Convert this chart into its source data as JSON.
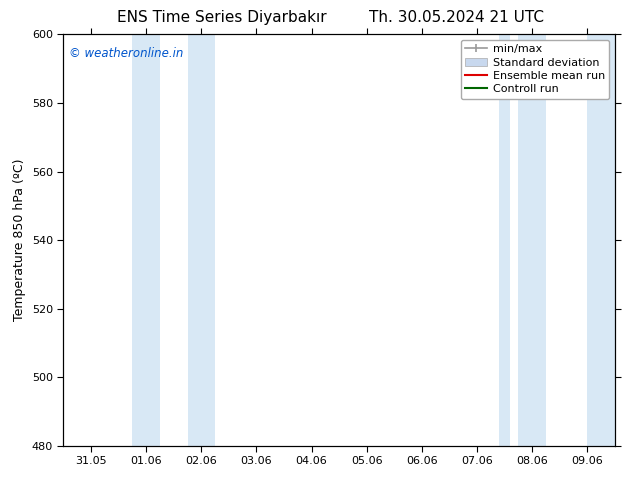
{
  "title_left": "ENS Time Series Diyarbakır",
  "title_right": "Th. 30.05.2024 21 UTC",
  "ylabel": "Temperature 850 hPa (ºC)",
  "ylim": [
    480,
    600
  ],
  "yticks": [
    480,
    500,
    520,
    540,
    560,
    580,
    600
  ],
  "xlim_start": -0.5,
  "xlim_end": 9.5,
  "xtick_labels": [
    "31.05",
    "01.06",
    "02.06",
    "03.06",
    "04.06",
    "05.06",
    "06.06",
    "07.06",
    "08.06",
    "09.06"
  ],
  "xtick_positions": [
    0,
    1,
    2,
    3,
    4,
    5,
    6,
    7,
    8,
    9
  ],
  "watermark": "© weatheronline.in",
  "watermark_color": "#0055cc",
  "background_color": "#ffffff",
  "plot_bg_color": "#ffffff",
  "shaded_bands": [
    {
      "x_start": 0.75,
      "x_end": 1.25,
      "color": "#d8e8f5"
    },
    {
      "x_start": 1.75,
      "x_end": 2.25,
      "color": "#d8e8f5"
    },
    {
      "x_start": 7.4,
      "x_end": 7.6,
      "color": "#d8e8f5"
    },
    {
      "x_start": 7.75,
      "x_end": 8.25,
      "color": "#d8e8f5"
    },
    {
      "x_start": 9.0,
      "x_end": 9.5,
      "color": "#d8e8f5"
    }
  ],
  "legend_entries": [
    {
      "label": "min/max",
      "color": "#999999",
      "style": "errbar"
    },
    {
      "label": "Standard deviation",
      "color": "#c8d8ee",
      "style": "rect"
    },
    {
      "label": "Ensemble mean run",
      "color": "#dd0000",
      "style": "line"
    },
    {
      "label": "Controll run",
      "color": "#006600",
      "style": "line"
    }
  ],
  "title_fontsize": 11,
  "axis_label_fontsize": 9,
  "tick_fontsize": 8,
  "legend_fontsize": 8
}
